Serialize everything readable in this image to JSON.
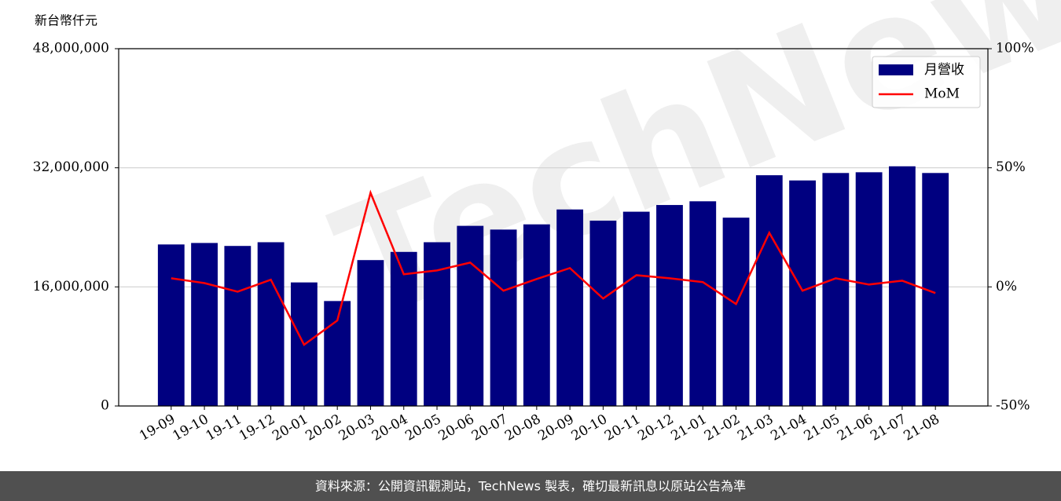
{
  "chart_data": {
    "type": "bar",
    "y_unit_label": "新台幣仟元",
    "watermark": "TechNews",
    "footer": "資料來源：公開資訊觀測站，TechNews 製表，確切最新訊息以原站公告為準",
    "categories": [
      "19-09",
      "19-10",
      "19-11",
      "19-12",
      "20-01",
      "20-02",
      "20-03",
      "20-04",
      "20-05",
      "20-06",
      "20-07",
      "20-08",
      "20-09",
      "20-10",
      "20-11",
      "20-12",
      "21-01",
      "21-02",
      "21-03",
      "21-04",
      "21-05",
      "21-06",
      "21-07",
      "21-08"
    ],
    "series": [
      {
        "name": "月營收",
        "type": "bar",
        "axis": "y",
        "color": "#000080",
        "values": [
          21700000,
          21900000,
          21500000,
          22000000,
          16600000,
          14100000,
          19600000,
          20700000,
          22000000,
          24200000,
          23700000,
          24400000,
          26400000,
          24900000,
          26100000,
          27000000,
          27500000,
          25300000,
          31000000,
          30300000,
          31300000,
          31400000,
          32200000,
          31300000
        ]
      },
      {
        "name": "MoM",
        "type": "line",
        "axis": "y2",
        "color": "#ff0000",
        "values": [
          3.6,
          1.6,
          -2.0,
          3.0,
          -24.3,
          -14.1,
          39.5,
          5.3,
          6.9,
          10.2,
          -1.6,
          3.3,
          7.9,
          -4.9,
          4.9,
          3.6,
          2.0,
          -7.2,
          22.7,
          -1.6,
          3.6,
          1.0,
          2.6,
          -2.6
        ]
      }
    ],
    "ylim": [
      0,
      48000000
    ],
    "yticks": [
      0,
      {
        "value": 16000000,
        "label": "16,000,000"
      },
      {
        "value": 32000000,
        "label": "32,000,000"
      },
      {
        "value": 48000000,
        "label": "48,000,000"
      }
    ],
    "y2lim": [
      -50,
      100
    ],
    "y2ticks": [
      {
        "value": -50,
        "label": "-50%"
      },
      {
        "value": 0,
        "label": "0%"
      },
      {
        "value": 50,
        "label": "50%"
      },
      {
        "value": 100,
        "label": "100%"
      }
    ],
    "grid": true,
    "legend": "upper right"
  }
}
